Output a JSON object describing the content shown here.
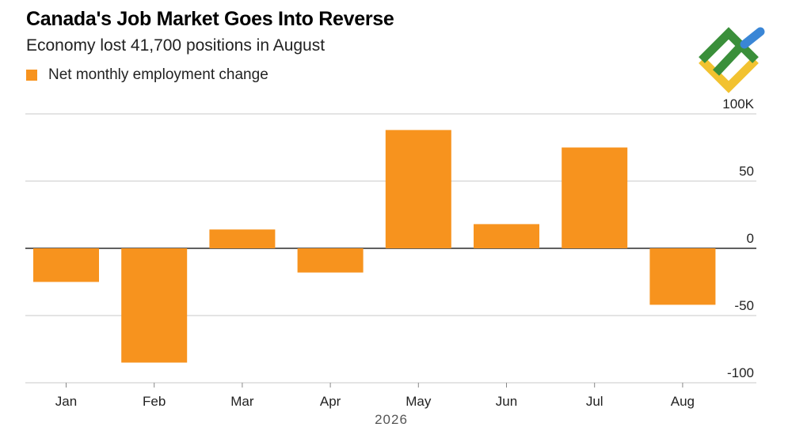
{
  "title": "Canada's Job Market Goes Into Reverse",
  "subtitle": "Economy lost 41,700 positions in August",
  "legend_label": "Net monthly employment change",
  "accent_color": "#f7931e",
  "logo_icon": "brand-logo-icon",
  "chart_data": {
    "type": "bar",
    "categories": [
      "Jan",
      "Feb",
      "Mar",
      "Apr",
      "May",
      "Jun",
      "Jul",
      "Aug"
    ],
    "series": [
      {
        "name": "Net monthly employment change",
        "values": [
          -25,
          -85,
          14,
          -18,
          88,
          18,
          75,
          -42
        ]
      }
    ],
    "xlabel": "2026",
    "ylabel": "",
    "ylim": [
      -100,
      100
    ],
    "yticks": [
      100,
      50,
      0,
      -50,
      -100
    ],
    "ytick_labels": [
      "100K",
      "50",
      "0",
      "-50",
      "-100"
    ],
    "grid": true,
    "legend": "top-left",
    "bar_color": "#f7931e"
  }
}
